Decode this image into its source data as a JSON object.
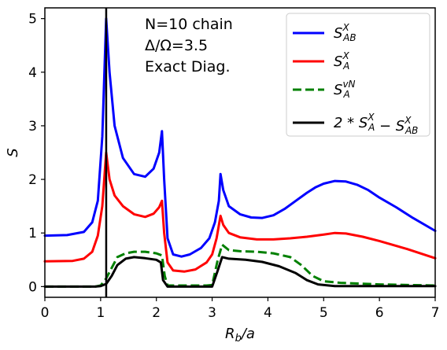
{
  "chart_data": {
    "type": "line",
    "xlabel": "R_b/a",
    "ylabel": "S",
    "xlim": [
      0,
      7
    ],
    "ylim": [
      -0.2,
      5.2
    ],
    "xticks": [
      "0",
      "1",
      "2",
      "3",
      "4",
      "5",
      "6",
      "7"
    ],
    "yticks": [
      "0",
      "1",
      "2",
      "3",
      "4",
      "5"
    ],
    "grid": false,
    "legend_position": "top-right",
    "annotations": [
      "N=10 chain",
      "Δ/Ω=3.5",
      "Exact Diag."
    ],
    "vline": {
      "x": 1.1,
      "color": "#000000"
    },
    "series": [
      {
        "name": "S_AB^X",
        "color": "#0000ff",
        "dash": "solid",
        "points": [
          [
            0,
            0.95
          ],
          [
            0.4,
            0.96
          ],
          [
            0.7,
            1.02
          ],
          [
            0.85,
            1.2
          ],
          [
            0.95,
            1.6
          ],
          [
            1.03,
            2.8
          ],
          [
            1.1,
            5.0
          ],
          [
            1.16,
            4.0
          ],
          [
            1.25,
            3.0
          ],
          [
            1.4,
            2.4
          ],
          [
            1.6,
            2.1
          ],
          [
            1.8,
            2.05
          ],
          [
            1.95,
            2.2
          ],
          [
            2.05,
            2.5
          ],
          [
            2.1,
            2.9
          ],
          [
            2.14,
            2.0
          ],
          [
            2.2,
            0.9
          ],
          [
            2.3,
            0.6
          ],
          [
            2.45,
            0.56
          ],
          [
            2.6,
            0.6
          ],
          [
            2.8,
            0.72
          ],
          [
            2.95,
            0.9
          ],
          [
            3.05,
            1.2
          ],
          [
            3.12,
            1.6
          ],
          [
            3.15,
            2.1
          ],
          [
            3.2,
            1.8
          ],
          [
            3.3,
            1.5
          ],
          [
            3.5,
            1.35
          ],
          [
            3.7,
            1.29
          ],
          [
            3.9,
            1.28
          ],
          [
            4.1,
            1.33
          ],
          [
            4.3,
            1.45
          ],
          [
            4.5,
            1.6
          ],
          [
            4.7,
            1.75
          ],
          [
            4.85,
            1.85
          ],
          [
            5.0,
            1.92
          ],
          [
            5.2,
            1.97
          ],
          [
            5.4,
            1.96
          ],
          [
            5.6,
            1.9
          ],
          [
            5.8,
            1.8
          ],
          [
            6.0,
            1.66
          ],
          [
            6.3,
            1.48
          ],
          [
            6.6,
            1.28
          ],
          [
            7.0,
            1.04
          ]
        ]
      },
      {
        "name": "S_A^X",
        "color": "#ff0000",
        "dash": "solid",
        "points": [
          [
            0,
            0.47
          ],
          [
            0.5,
            0.48
          ],
          [
            0.7,
            0.52
          ],
          [
            0.85,
            0.65
          ],
          [
            0.95,
            0.95
          ],
          [
            1.03,
            1.5
          ],
          [
            1.1,
            2.5
          ],
          [
            1.16,
            2.0
          ],
          [
            1.25,
            1.7
          ],
          [
            1.4,
            1.5
          ],
          [
            1.6,
            1.35
          ],
          [
            1.8,
            1.3
          ],
          [
            1.95,
            1.36
          ],
          [
            2.05,
            1.48
          ],
          [
            2.1,
            1.6
          ],
          [
            2.14,
            1.0
          ],
          [
            2.2,
            0.45
          ],
          [
            2.3,
            0.3
          ],
          [
            2.5,
            0.28
          ],
          [
            2.7,
            0.32
          ],
          [
            2.9,
            0.45
          ],
          [
            3.0,
            0.6
          ],
          [
            3.08,
            0.9
          ],
          [
            3.15,
            1.32
          ],
          [
            3.2,
            1.15
          ],
          [
            3.3,
            1.0
          ],
          [
            3.5,
            0.92
          ],
          [
            3.8,
            0.88
          ],
          [
            4.1,
            0.88
          ],
          [
            4.4,
            0.9
          ],
          [
            4.7,
            0.93
          ],
          [
            5.0,
            0.97
          ],
          [
            5.2,
            1.0
          ],
          [
            5.4,
            0.99
          ],
          [
            5.7,
            0.93
          ],
          [
            6.0,
            0.85
          ],
          [
            6.5,
            0.7
          ],
          [
            7.0,
            0.53
          ]
        ]
      },
      {
        "name": "S_A^vN",
        "color": "#008000",
        "dash": "dashed",
        "points": [
          [
            0,
            0.0
          ],
          [
            0.9,
            0.0
          ],
          [
            1.0,
            0.02
          ],
          [
            1.1,
            0.15
          ],
          [
            1.2,
            0.35
          ],
          [
            1.3,
            0.55
          ],
          [
            1.45,
            0.62
          ],
          [
            1.6,
            0.65
          ],
          [
            1.8,
            0.65
          ],
          [
            2.0,
            0.62
          ],
          [
            2.1,
            0.58
          ],
          [
            2.15,
            0.2
          ],
          [
            2.2,
            0.02
          ],
          [
            2.9,
            0.02
          ],
          [
            3.0,
            0.03
          ],
          [
            3.1,
            0.5
          ],
          [
            3.18,
            0.78
          ],
          [
            3.3,
            0.68
          ],
          [
            3.5,
            0.66
          ],
          [
            3.8,
            0.65
          ],
          [
            4.1,
            0.62
          ],
          [
            4.4,
            0.55
          ],
          [
            4.6,
            0.4
          ],
          [
            4.8,
            0.2
          ],
          [
            5.0,
            0.1
          ],
          [
            5.3,
            0.07
          ],
          [
            6.0,
            0.04
          ],
          [
            7.0,
            0.02
          ]
        ]
      },
      {
        "name": "2*S_A^X - S_AB^X",
        "color": "#000000",
        "dash": "solid",
        "points": [
          [
            0,
            0.0
          ],
          [
            0.9,
            0.0
          ],
          [
            1.0,
            0.01
          ],
          [
            1.1,
            0.05
          ],
          [
            1.2,
            0.2
          ],
          [
            1.3,
            0.4
          ],
          [
            1.45,
            0.52
          ],
          [
            1.6,
            0.55
          ],
          [
            1.8,
            0.53
          ],
          [
            2.0,
            0.5
          ],
          [
            2.08,
            0.45
          ],
          [
            2.12,
            0.12
          ],
          [
            2.2,
            0.0
          ],
          [
            3.0,
            0.0
          ],
          [
            3.1,
            0.3
          ],
          [
            3.18,
            0.55
          ],
          [
            3.3,
            0.52
          ],
          [
            3.6,
            0.5
          ],
          [
            3.9,
            0.46
          ],
          [
            4.2,
            0.38
          ],
          [
            4.5,
            0.25
          ],
          [
            4.7,
            0.12
          ],
          [
            4.9,
            0.04
          ],
          [
            5.2,
            0.01
          ],
          [
            6.0,
            0.01
          ],
          [
            7.0,
            0.01
          ]
        ]
      }
    ]
  },
  "legend": [
    {
      "base": "S",
      "sup": "X",
      "sub": "AB"
    },
    {
      "base": "S",
      "sup": "X",
      "sub": "A"
    },
    {
      "base": "S",
      "sup": "vN",
      "sub": "A"
    },
    {
      "base": "2 * S",
      "sup": "X",
      "sub": "A",
      "base2": " − S",
      "sup2": "X",
      "sub2": "AB"
    }
  ]
}
